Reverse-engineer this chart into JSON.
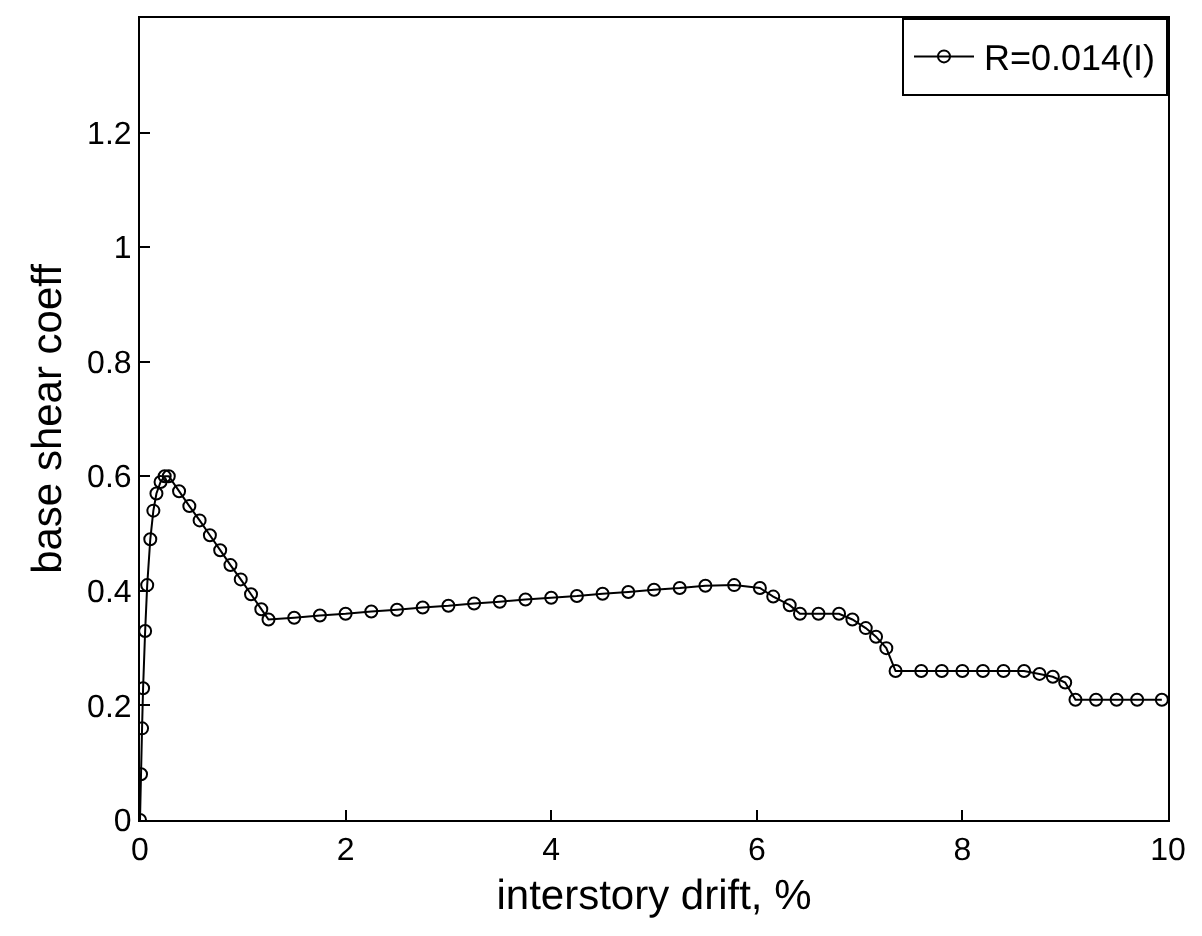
{
  "chart_data": {
    "type": "line",
    "xlabel": "interstory drift, %",
    "ylabel": "base shear coeff",
    "xlim": [
      0,
      10
    ],
    "ylim": [
      0,
      1.4
    ],
    "xticks": [
      0,
      2,
      4,
      6,
      8,
      10
    ],
    "yticks": [
      0,
      0.2,
      0.4,
      0.6,
      0.8,
      1,
      1.2
    ],
    "legend": "top right",
    "marker": "circle",
    "line_style": "solid",
    "series": [
      {
        "name": "R=0.014(I)",
        "color": "#000000",
        "x": [
          0,
          0.01,
          0.02,
          0.03,
          0.05,
          0.07,
          0.1,
          0.13,
          0.16,
          0.2,
          0.24,
          0.28,
          0.38,
          0.48,
          0.58,
          0.68,
          0.78,
          0.88,
          0.98,
          1.08,
          1.18,
          1.25,
          1.5,
          1.75,
          2,
          2.25,
          2.5,
          2.75,
          3,
          3.25,
          3.5,
          3.75,
          4,
          4.25,
          4.5,
          4.75,
          5,
          5.25,
          5.5,
          5.78,
          6.03,
          6.16,
          6.32,
          6.42,
          6.6,
          6.8,
          6.93,
          7.06,
          7.16,
          7.26,
          7.35,
          7.6,
          7.8,
          8.0,
          8.2,
          8.4,
          8.6,
          8.75,
          8.88,
          9.0,
          9.1,
          9.3,
          9.5,
          9.7,
          9.94
        ],
        "values": [
          0,
          0.08,
          0.16,
          0.23,
          0.33,
          0.41,
          0.49,
          0.54,
          0.57,
          0.59,
          0.6,
          0.6,
          0.574,
          0.548,
          0.523,
          0.497,
          0.471,
          0.445,
          0.42,
          0.394,
          0.368,
          0.35,
          0.353,
          0.357,
          0.36,
          0.364,
          0.367,
          0.371,
          0.374,
          0.378,
          0.381,
          0.385,
          0.388,
          0.391,
          0.395,
          0.398,
          0.402,
          0.405,
          0.409,
          0.41,
          0.405,
          0.39,
          0.375,
          0.36,
          0.36,
          0.36,
          0.35,
          0.335,
          0.32,
          0.3,
          0.26,
          0.26,
          0.26,
          0.26,
          0.26,
          0.26,
          0.26,
          0.255,
          0.25,
          0.24,
          0.21,
          0.21,
          0.21,
          0.21,
          0.21
        ]
      }
    ]
  }
}
